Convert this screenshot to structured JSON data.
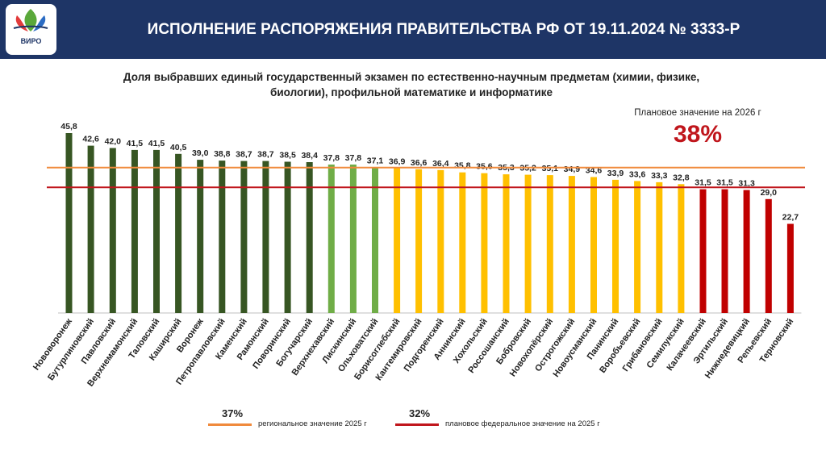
{
  "header": {
    "title": "ИСПОЛНЕНИЕ РАСПОРЯЖЕНИЯ ПРАВИТЕЛЬСТВА РФ ОТ 19.11.2024 № 3333-Р",
    "logo_text": "ВИРО",
    "background_color": "#1e3566"
  },
  "plan": {
    "label": "Плановое значение на 2026 г",
    "value": "38%",
    "color": "#c0161c"
  },
  "legend": {
    "regional": {
      "value": "37%",
      "label": "региональное значение 2025 г",
      "color": "#f08a3c"
    },
    "federal": {
      "value": "32%",
      "label": "плановое федеральное значение на 2025 г",
      "color": "#c0161c"
    }
  },
  "chart_data": {
    "type": "bar",
    "title": "Доля выбравших единый государственный экзамен по естественно-научным предметам (химии, физике, биологии), профильной математике и информатике",
    "categories": [
      "Нововоронеж",
      "Бутурлиновский",
      "Павловский",
      "Верхнемамонский",
      "Таловский",
      "Каширский",
      "Воронеж",
      "Петропавловский",
      "Каменский",
      "Рамонский",
      "Поворинский",
      "Богучарский",
      "Верхнехавский",
      "Лискинский",
      "Ольховатский",
      "Борисоглебский",
      "Кантемировский",
      "Подгоренский",
      "Аннинский",
      "Хохольский",
      "Россошанский",
      "Бобровский",
      "Новохопёрский",
      "Острогожский",
      "Новоусманский",
      "Панинский",
      "Воробьевский",
      "Грибановский",
      "Семилукский",
      "Калачеевский",
      "Эртильский",
      "Нижнедевицкий",
      "Репьевский",
      "Терновский"
    ],
    "values": [
      45.8,
      42.6,
      42.0,
      41.5,
      41.5,
      40.5,
      39.0,
      38.8,
      38.7,
      38.7,
      38.5,
      38.4,
      37.8,
      37.8,
      37.1,
      36.9,
      36.6,
      36.4,
      35.8,
      35.6,
      35.3,
      35.2,
      35.1,
      34.9,
      34.6,
      33.9,
      33.6,
      33.3,
      32.8,
      31.5,
      31.5,
      31.3,
      29.0,
      22.7
    ],
    "labels": [
      "45,8",
      "42,6",
      "42,0",
      "41,5",
      "41,5",
      "40,5",
      "39,0",
      "38,8",
      "38,7",
      "38,7",
      "38,5",
      "38,4",
      "37,8",
      "37,8",
      "37,1",
      "36,9",
      "36,6",
      "36,4",
      "35,8",
      "35,6",
      "35,3",
      "35,2",
      "35,1",
      "34,9",
      "34,6",
      "33,9",
      "33,6",
      "33,3",
      "32,8",
      "31,5",
      "31,5",
      "31,3",
      "29,0",
      "22,7"
    ],
    "colors": [
      "#375623",
      "#375623",
      "#375623",
      "#375623",
      "#375623",
      "#375623",
      "#375623",
      "#375623",
      "#375623",
      "#375623",
      "#375623",
      "#375623",
      "#70ad47",
      "#70ad47",
      "#70ad47",
      "#ffc000",
      "#ffc000",
      "#ffc000",
      "#ffc000",
      "#ffc000",
      "#ffc000",
      "#ffc000",
      "#ffc000",
      "#ffc000",
      "#ffc000",
      "#ffc000",
      "#ffc000",
      "#ffc000",
      "#ffc000",
      "#c00000",
      "#c00000",
      "#c00000",
      "#c00000",
      "#c00000"
    ],
    "reference_lines": [
      {
        "name": "региональное значение 2025 г",
        "value": 37,
        "color": "#f08a3c"
      },
      {
        "name": "плановое федеральное значение на 2025 г",
        "value": 32,
        "color": "#c0161c"
      }
    ],
    "ylim": [
      0,
      45.8
    ],
    "grid": false,
    "xlabel": "",
    "ylabel": ""
  }
}
